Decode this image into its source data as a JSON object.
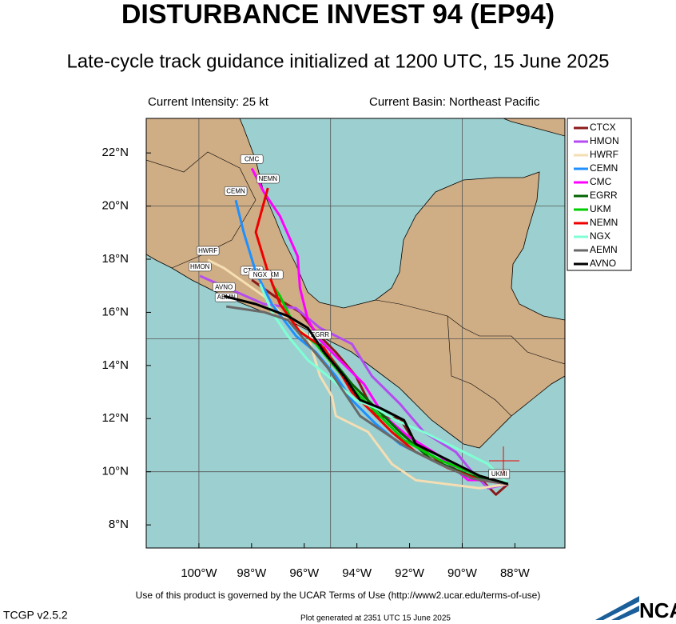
{
  "chart_data": {
    "type": "track",
    "title": "DISTURBANCE INVEST 94 (EP94)",
    "subtitle": "Late-cycle track guidance initialized at 1200 UTC, 15 June 2025",
    "intensity": "Current Intensity: 25 kt",
    "basin": "Current Basin: Northeast Pacific",
    "xlim": [
      -102,
      -86.1
    ],
    "ylim": [
      7.13,
      23.3
    ],
    "xticks": [
      {
        "value": -100,
        "label": "100°W"
      },
      {
        "value": -98,
        "label": "98°W"
      },
      {
        "value": -96,
        "label": "96°W"
      },
      {
        "value": -94,
        "label": "94°W"
      },
      {
        "value": -92,
        "label": "92°W"
      },
      {
        "value": -90,
        "label": "90°W"
      },
      {
        "value": -88,
        "label": "88°W"
      }
    ],
    "yticks": [
      {
        "value": 8,
        "label": "8°N"
      },
      {
        "value": 10,
        "label": "10°N"
      },
      {
        "value": 12,
        "label": "12°N"
      },
      {
        "value": 14,
        "label": "14°N"
      },
      {
        "value": 16,
        "label": "16°N"
      },
      {
        "value": 18,
        "label": "18°N"
      },
      {
        "value": 20,
        "label": "20°N"
      },
      {
        "value": 22,
        "label": "22°N"
      }
    ],
    "xgrid": [
      -100,
      -95,
      -90
    ],
    "ygrid": [
      10,
      15,
      20
    ],
    "series": [
      {
        "name": "CTCX",
        "color": "#8b1a1a",
        "x": [
          -88.26,
          -88.72,
          -89.33,
          -90.54,
          -91.76,
          -92.36,
          -93.28,
          -94.04,
          -94.8,
          -95.56,
          -96.16,
          -96.92,
          -97.99
        ],
        "values": [
          9.54,
          9.14,
          9.75,
          10.14,
          11.04,
          12.0,
          12.1,
          13.6,
          14.5,
          15.26,
          16.01,
          16.46,
          17.22
        ]
      },
      {
        "name": "HMON",
        "color": "#b44cf0",
        "x": [
          -88.26,
          -89.02,
          -89.63,
          -90.24,
          -91.45,
          -92.36,
          -93.43,
          -94.19,
          -95.4,
          -96.32,
          -97.53,
          -99.96
        ],
        "values": [
          9.54,
          9.38,
          10.0,
          10.74,
          11.49,
          12.55,
          13.6,
          14.81,
          15.41,
          16.16,
          16.31,
          17.37
        ]
      },
      {
        "name": "HWRF",
        "color": "#f5deb3",
        "x": [
          -88.26,
          -89.33,
          -91.76,
          -92.67,
          -93.58,
          -94.19,
          -94.8,
          -94.95,
          -95.4,
          -95.86,
          -96.62,
          -97.53,
          -99.05,
          -99.66
        ],
        "values": [
          9.54,
          9.38,
          9.68,
          10.29,
          11.5,
          11.8,
          12.1,
          12.85,
          13.6,
          15.11,
          15.71,
          16.61,
          17.67,
          17.97
        ]
      },
      {
        "name": "CEMN",
        "color": "#1e90ff",
        "x": [
          -88.26,
          -89.33,
          -90.85,
          -92.36,
          -93.28,
          -94.19,
          -94.8,
          -95.56,
          -96.31,
          -97.23,
          -97.84,
          -98.3,
          -98.6
        ],
        "values": [
          9.54,
          9.69,
          10.29,
          11.04,
          11.8,
          12.7,
          13.6,
          14.5,
          15.11,
          16.31,
          17.52,
          19.02,
          20.22
        ]
      },
      {
        "name": "CMC",
        "color": "#ff00ff",
        "x": [
          -88.26,
          -89.02,
          -89.78,
          -90.85,
          -92.06,
          -92.97,
          -93.73,
          -94.65,
          -95.4,
          -95.86,
          -96.16,
          -96.25,
          -96.92,
          -97.53,
          -97.99
        ],
        "values": [
          9.54,
          9.69,
          9.69,
          10.59,
          11.34,
          12.1,
          13.3,
          14.2,
          14.96,
          15.71,
          16.91,
          18.11,
          19.62,
          20.52,
          21.42
        ]
      },
      {
        "name": "EGRR",
        "color": "#006400",
        "x": [
          -88.26,
          -89.63,
          -91.15,
          -92.36,
          -93.43,
          -94.19,
          -94.8,
          -95.4
        ],
        "values": [
          9.54,
          9.84,
          10.44,
          11.49,
          12.55,
          13.3,
          14.05,
          14.81
        ]
      },
      {
        "name": "UKM",
        "color": "#00cd00",
        "x": [
          -88.26,
          -89.33,
          -90.85,
          -92.21,
          -93.28,
          -94.04,
          -94.8,
          -95.56,
          -96.32,
          -96.92,
          -97.23
        ],
        "values": [
          9.54,
          9.84,
          10.44,
          11.19,
          12.25,
          13.0,
          13.9,
          14.81,
          15.41,
          16.61,
          17.07
        ]
      },
      {
        "name": "NEMN",
        "color": "#ee0000",
        "x": [
          -88.26,
          -89.33,
          -90.54,
          -91.76,
          -92.67,
          -93.58,
          -94.19,
          -94.64,
          -95.25,
          -96.16,
          -96.92,
          -97.38,
          -97.84,
          -97.38
        ],
        "values": [
          9.54,
          9.69,
          10.14,
          10.74,
          11.49,
          12.4,
          13.0,
          13.75,
          14.66,
          15.26,
          16.31,
          17.52,
          19.02,
          20.68
        ]
      },
      {
        "name": "NGX",
        "color": "#7fffd4",
        "x": [
          -88.26,
          -89.02,
          -90.24,
          -91.45,
          -92.52,
          -93.28,
          -94.04,
          -95.1,
          -95.86,
          -96.62,
          -97.23,
          -97.68
        ],
        "values": [
          9.54,
          10.29,
          10.89,
          11.49,
          11.94,
          12.4,
          12.7,
          13.6,
          14.2,
          15.11,
          16.01,
          17.07
        ]
      },
      {
        "name": "AEMN",
        "color": "#696969",
        "x": [
          -88.26,
          -89.63,
          -90.85,
          -92.06,
          -92.97,
          -93.88,
          -94.49,
          -95.1,
          -95.86,
          -96.62,
          -97.53,
          -98.96
        ],
        "values": [
          9.54,
          9.75,
          10.29,
          10.89,
          11.49,
          12.1,
          13.0,
          13.9,
          14.81,
          15.71,
          16.01,
          16.22
        ]
      },
      {
        "name": "AVNO",
        "color": "#000000",
        "x": [
          -88.26,
          -89.33,
          -90.54,
          -91.76,
          -92.21,
          -93.12,
          -93.88,
          -94.49,
          -95.25,
          -95.86,
          -96.62,
          -97.84,
          -99.05
        ],
        "values": [
          9.54,
          9.84,
          10.44,
          11.04,
          11.94,
          12.4,
          12.7,
          13.6,
          14.5,
          15.41,
          15.86,
          16.31,
          16.61
        ]
      }
    ],
    "annotation": "UKMI",
    "footer": "Use of this product is governed by the UCAR Terms of Use (http://www2.ucar.edu/terms-of-use)",
    "version": "TCGP v2.5.2",
    "generated": "Plot generated at 2351 UTC   15 June 2025",
    "logo": "NCAR"
  }
}
